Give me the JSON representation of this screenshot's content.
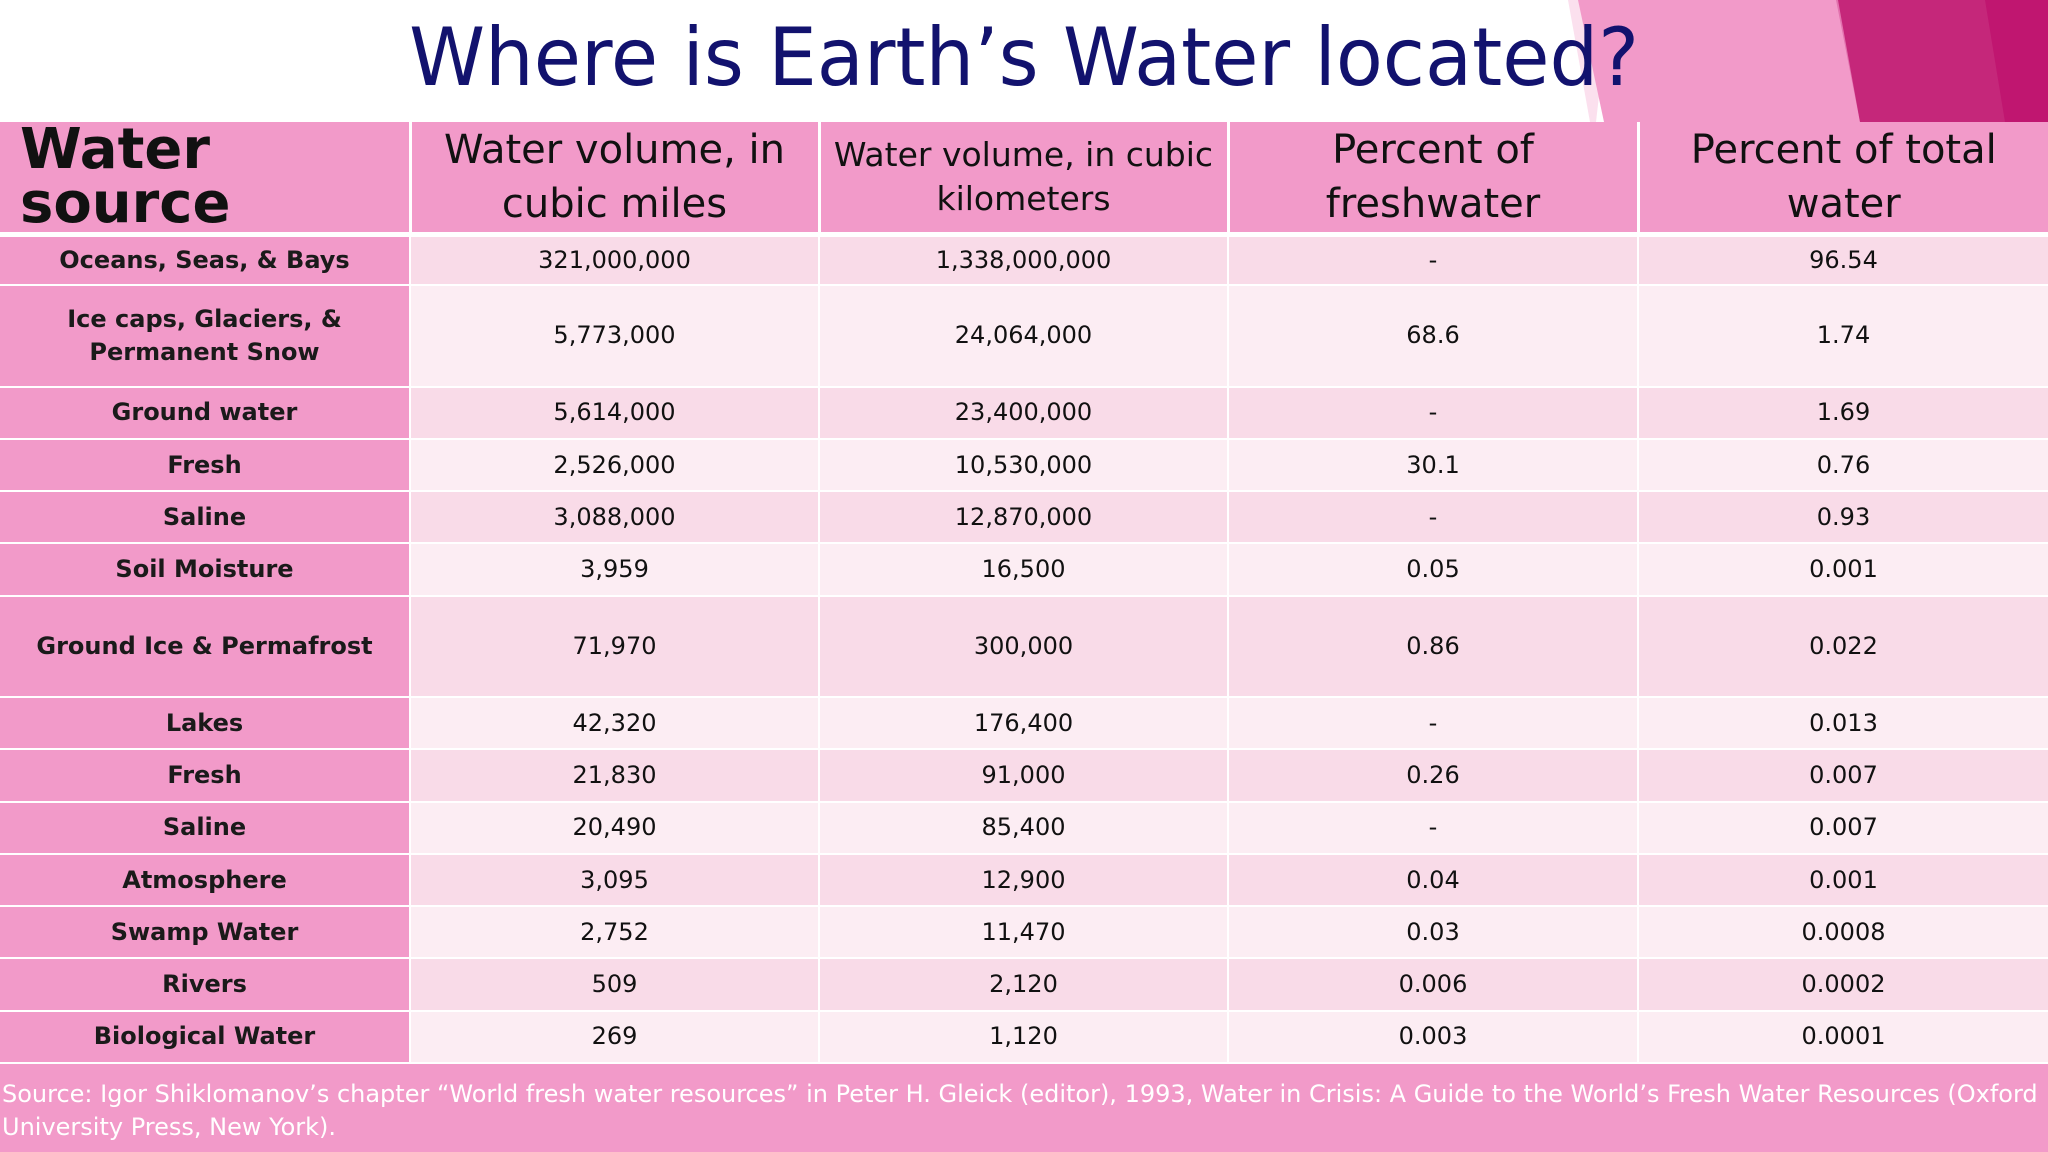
{
  "slide": {
    "title": "Where is Earth’s Water located?",
    "colors": {
      "title": "#12126e",
      "header_fill": "#f29ac9",
      "row_light": "#fcedf3",
      "row_medium": "#f9dbe8",
      "accent_dark": "#c01670"
    }
  },
  "table": {
    "headers": [
      "Water source",
      "Water volume, in cubic miles",
      "Water volume, in cubic kilometers",
      "Percent of freshwater",
      "Percent of total water"
    ],
    "rows": [
      [
        "Oceans, Seas, & Bays",
        "321,000,000",
        "1,338,000,000",
        "-",
        "96.54"
      ],
      [
        "Ice caps, Glaciers, & Permanent Snow",
        "5,773,000",
        "24,064,000",
        "68.6",
        "1.74"
      ],
      [
        "Ground water",
        "5,614,000",
        "23,400,000",
        "-",
        "1.69"
      ],
      [
        "Fresh",
        "2,526,000",
        "10,530,000",
        "30.1",
        "0.76"
      ],
      [
        "Saline",
        "3,088,000",
        "12,870,000",
        "-",
        "0.93"
      ],
      [
        "Soil Moisture",
        "3,959",
        "16,500",
        "0.05",
        "0.001"
      ],
      [
        "Ground Ice & Permafrost",
        "71,970",
        "300,000",
        "0.86",
        "0.022"
      ],
      [
        "Lakes",
        "42,320",
        "176,400",
        "-",
        "0.013"
      ],
      [
        "Fresh",
        "21,830",
        "91,000",
        "0.26",
        "0.007"
      ],
      [
        "Saline",
        "20,490",
        "85,400",
        "-",
        "0.007"
      ],
      [
        "Atmosphere",
        "3,095",
        "12,900",
        "0.04",
        "0.001"
      ],
      [
        "Swamp Water",
        "2,752",
        "11,470",
        "0.03",
        "0.0008"
      ],
      [
        "Rivers",
        "509",
        "2,120",
        "0.006",
        "0.0002"
      ],
      [
        "Biological Water",
        "269",
        "1,120",
        "0.003",
        "0.0001"
      ]
    ]
  },
  "footer": {
    "source": "Source: Igor Shiklomanov’s chapter “World fresh water resources” in Peter H. Gleick (editor), 1993, Water in Crisis: A Guide to the World’s Fresh Water Resources (Oxford University Press, New York)."
  }
}
